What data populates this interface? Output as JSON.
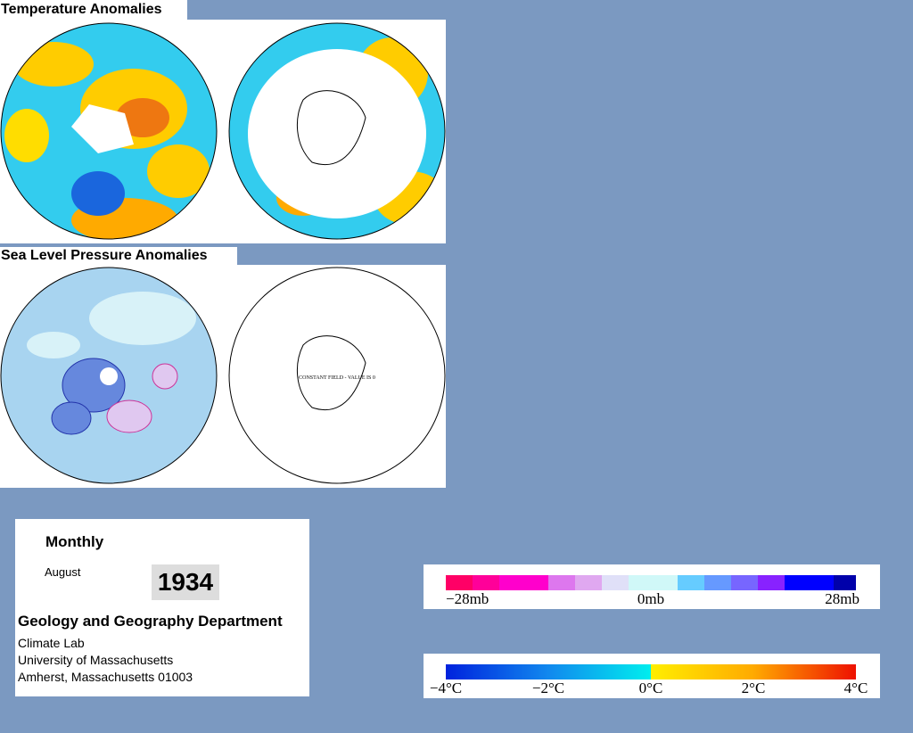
{
  "temperature_panel": {
    "title": "Temperature Anomalies"
  },
  "pressure_panel": {
    "title": "Sea Level Pressure Anomalies",
    "note": "CONSTANT FIELD - VALUE IS 0"
  },
  "info": {
    "period": "Monthly",
    "month": "August",
    "year": "1934",
    "department": "Geology and Geography Department",
    "address": [
      "Climate Lab",
      "University of Massachusetts",
      "Amherst, Massachusetts 01003"
    ]
  },
  "legends": {
    "pressure": {
      "labels": [
        "−28mb",
        "0mb",
        "28mb"
      ]
    },
    "temperature": {
      "labels": [
        "−4°C",
        "−2°C",
        "0°C",
        "2°C",
        "4°C"
      ]
    }
  }
}
